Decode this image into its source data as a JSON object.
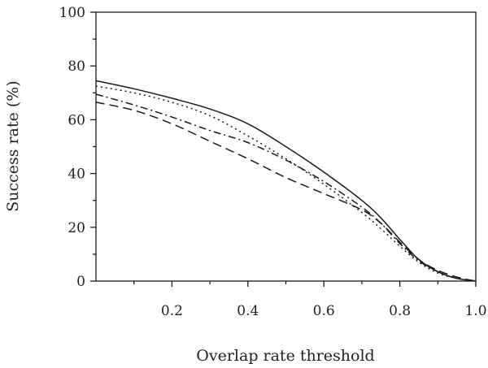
{
  "chart_data": {
    "type": "line",
    "title": "",
    "xlabel": "Overlap rate threshold",
    "ylabel": "Success rate (%)",
    "xlim": [
      0.0,
      1.0
    ],
    "ylim": [
      0,
      100
    ],
    "grid": false,
    "legend": "none",
    "x_tick_labels": [
      "0.2",
      "0.4",
      "0.6",
      "0.8",
      "1.0"
    ],
    "y_tick_labels": [
      "0",
      "20",
      "40",
      "60",
      "80",
      "100"
    ],
    "series": [
      {
        "dash": "solid",
        "x": [
          0.0,
          0.1,
          0.2,
          0.3,
          0.4,
          0.5,
          0.6,
          0.7,
          0.75,
          0.8,
          0.85,
          0.9,
          0.95,
          1.0
        ],
        "y": [
          74.5,
          71.5,
          68.0,
          64.0,
          58.5,
          50.0,
          40.5,
          30.0,
          23.5,
          15.5,
          8.0,
          3.5,
          1.0,
          0.0
        ]
      },
      {
        "dash": "dotted",
        "x": [
          0.0,
          0.1,
          0.2,
          0.3,
          0.4,
          0.5,
          0.6,
          0.7,
          0.75,
          0.8,
          0.85,
          0.9,
          0.95,
          1.0
        ],
        "y": [
          72.5,
          70.0,
          66.5,
          61.5,
          54.0,
          45.5,
          36.0,
          25.5,
          19.5,
          13.0,
          7.0,
          3.0,
          1.0,
          0.0
        ]
      },
      {
        "dash": "dash-dot",
        "x": [
          0.0,
          0.1,
          0.2,
          0.3,
          0.4,
          0.5,
          0.6,
          0.7,
          0.75,
          0.8,
          0.85,
          0.9,
          0.95,
          1.0
        ],
        "y": [
          69.5,
          65.5,
          61.0,
          56.0,
          51.5,
          45.0,
          37.0,
          27.5,
          21.5,
          14.0,
          7.5,
          3.5,
          1.0,
          0.0
        ]
      },
      {
        "dash": "dashed",
        "x": [
          0.0,
          0.1,
          0.2,
          0.3,
          0.4,
          0.5,
          0.6,
          0.7,
          0.75,
          0.8,
          0.85,
          0.9,
          0.95,
          1.0
        ],
        "y": [
          66.5,
          63.5,
          58.5,
          52.0,
          45.5,
          38.5,
          32.5,
          26.5,
          21.5,
          14.5,
          8.0,
          4.0,
          1.5,
          0.0
        ]
      }
    ]
  }
}
